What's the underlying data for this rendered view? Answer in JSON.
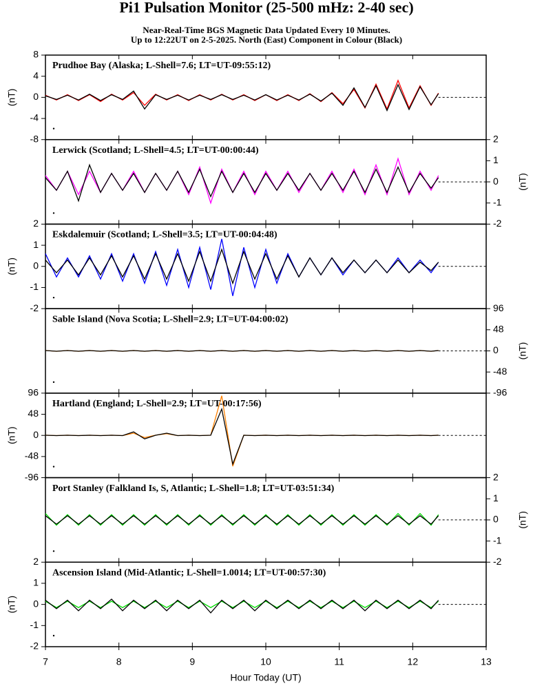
{
  "header": {
    "title": "Pi1 Pulsation Monitor (25-500 mHz: 2-40 sec)",
    "subtitle": [
      "Near-Real-Time BGS Magnetic Data Updated Every 10 Minutes.",
      "Up to 12:22UT on 2-5-2025. North (East) Component in Colour (Black)"
    ]
  },
  "chart_data": [
    {
      "type": "line",
      "title": "Prudhoe Bay (Alaska; L-Shell=7.6; LT=UT-09:55:12)",
      "ylabel": "(nT)",
      "y_axis_side": "left",
      "xlim": [
        7,
        13
      ],
      "xticks": [
        7,
        8,
        9,
        10,
        11,
        12,
        13
      ],
      "ylim": [
        -8,
        8
      ],
      "yticks": [
        -8,
        -4,
        0,
        4,
        8
      ],
      "x": [
        7,
        7.15,
        7.3,
        7.45,
        7.6,
        7.75,
        7.9,
        8.05,
        8.2,
        8.35,
        8.5,
        8.65,
        8.8,
        8.95,
        9.1,
        9.25,
        9.4,
        9.55,
        9.7,
        9.85,
        10,
        10.15,
        10.3,
        10.45,
        10.6,
        10.75,
        10.9,
        11.05,
        11.2,
        11.35,
        11.5,
        11.65,
        11.8,
        11.95,
        12.1,
        12.25,
        12.35
      ],
      "series": [
        {
          "color": "#ff0000",
          "values": [
            0.4,
            -0.5,
            0.5,
            -0.6,
            0.5,
            -0.8,
            0.6,
            -0.5,
            0.9,
            -1.5,
            0.6,
            -0.5,
            0.5,
            -0.6,
            0.5,
            -0.5,
            0.6,
            -0.5,
            0.5,
            -0.6,
            0.5,
            -0.6,
            0.5,
            -0.6,
            0.7,
            -0.8,
            0.9,
            -1.2,
            1.5,
            -2,
            2.5,
            -2.2,
            3.2,
            -2,
            2.2,
            -1.5,
            0.8
          ]
        },
        {
          "color": "#000000",
          "values": [
            0.3,
            -0.4,
            0.4,
            -0.5,
            0.6,
            -0.6,
            0.5,
            -0.4,
            1.2,
            -2.2,
            0.5,
            -0.4,
            0.4,
            -0.5,
            0.4,
            -0.4,
            0.5,
            -0.4,
            0.4,
            -0.5,
            0.5,
            -0.5,
            0.4,
            -0.5,
            0.6,
            -0.7,
            0.8,
            -1.5,
            1.8,
            -1.9,
            2.2,
            -2.5,
            2.4,
            -2.3,
            2,
            -1.4,
            0.7
          ]
        }
      ]
    },
    {
      "type": "line",
      "title": "Lerwick (Scotland; L-Shell=4.5; LT=UT-00:00:44)",
      "ylabel": "(nT)",
      "y_axis_side": "right",
      "xlim": [
        7,
        13
      ],
      "xticks": [
        7,
        8,
        9,
        10,
        11,
        12,
        13
      ],
      "ylim": [
        -2,
        2
      ],
      "yticks": [
        -2,
        -1,
        0,
        1,
        2
      ],
      "x": [
        7,
        7.15,
        7.3,
        7.45,
        7.6,
        7.75,
        7.9,
        8.05,
        8.2,
        8.35,
        8.5,
        8.65,
        8.8,
        8.95,
        9.1,
        9.25,
        9.4,
        9.55,
        9.7,
        9.85,
        10,
        10.15,
        10.3,
        10.45,
        10.6,
        10.75,
        10.9,
        11.05,
        11.2,
        11.35,
        11.5,
        11.65,
        11.8,
        11.95,
        12.1,
        12.25,
        12.35
      ],
      "series": [
        {
          "color": "#ff00ff",
          "values": [
            0.3,
            -0.4,
            0.5,
            -0.6,
            0.5,
            -0.5,
            0.4,
            -0.4,
            0.5,
            -0.5,
            0.4,
            -0.4,
            0.5,
            -0.6,
            0.7,
            -1,
            0.6,
            -0.5,
            0.5,
            -0.6,
            0.5,
            -0.4,
            0.5,
            -0.5,
            0.4,
            -0.4,
            0.5,
            -0.5,
            0.6,
            -0.6,
            0.8,
            -0.6,
            1.1,
            -0.6,
            0.5,
            -0.4,
            0.3
          ]
        },
        {
          "color": "#000000",
          "values": [
            0.2,
            -0.4,
            0.5,
            -0.9,
            0.8,
            -0.5,
            0.4,
            -0.4,
            0.4,
            -0.5,
            0.4,
            -0.4,
            0.5,
            -0.5,
            0.6,
            -0.7,
            0.5,
            -0.5,
            0.4,
            -0.5,
            0.4,
            -0.4,
            0.4,
            -0.4,
            0.4,
            -0.4,
            0.4,
            -0.4,
            0.5,
            -0.5,
            0.6,
            -0.5,
            0.7,
            -0.5,
            0.4,
            -0.3,
            0.2
          ]
        }
      ]
    },
    {
      "type": "line",
      "title": "Eskdalemuir (Scotland; L-Shell=3.5; LT=UT-00:04:48)",
      "ylabel": "(nT)",
      "y_axis_side": "left",
      "xlim": [
        7,
        13
      ],
      "xticks": [
        7,
        8,
        9,
        10,
        11,
        12,
        13
      ],
      "ylim": [
        -2,
        2
      ],
      "yticks": [
        -2,
        -1,
        0,
        1,
        2
      ],
      "x": [
        7,
        7.15,
        7.3,
        7.45,
        7.6,
        7.75,
        7.9,
        8.05,
        8.2,
        8.35,
        8.5,
        8.65,
        8.8,
        8.95,
        9.1,
        9.25,
        9.4,
        9.55,
        9.7,
        9.85,
        10,
        10.15,
        10.3,
        10.45,
        10.6,
        10.75,
        10.9,
        11.05,
        11.2,
        11.35,
        11.5,
        11.65,
        11.8,
        11.95,
        12.1,
        12.25,
        12.35
      ],
      "series": [
        {
          "color": "#0000ff",
          "values": [
            0.6,
            -0.5,
            0.4,
            -0.5,
            0.5,
            -0.6,
            0.6,
            -0.7,
            0.6,
            -0.8,
            0.7,
            -0.9,
            0.8,
            -1,
            0.9,
            -1.1,
            1.3,
            -1.4,
            0.9,
            -1,
            0.8,
            -0.8,
            0.6,
            -0.5,
            0.4,
            -0.4,
            0.4,
            -0.4,
            0.3,
            -0.3,
            0.3,
            -0.3,
            0.4,
            -0.3,
            0.3,
            -0.3,
            0.2
          ]
        },
        {
          "color": "#000000",
          "values": [
            0.3,
            -0.3,
            0.3,
            -0.4,
            0.4,
            -0.4,
            0.5,
            -0.5,
            0.5,
            -0.6,
            0.6,
            -0.6,
            0.6,
            -0.7,
            0.7,
            -0.7,
            0.8,
            -0.8,
            0.7,
            -0.6,
            0.6,
            -0.6,
            0.5,
            -0.5,
            0.4,
            -0.4,
            0.4,
            -0.3,
            0.3,
            -0.3,
            0.3,
            -0.3,
            0.3,
            -0.3,
            0.2,
            -0.2,
            0.2
          ]
        }
      ]
    },
    {
      "type": "line",
      "title": "Sable Island (Nova Scotia; L-Shell=2.9; LT=UT-04:00:02)",
      "ylabel": "(nT)",
      "y_axis_side": "right",
      "xlim": [
        7,
        13
      ],
      "xticks": [
        7,
        8,
        9,
        10,
        11,
        12,
        13
      ],
      "ylim": [
        -96,
        96
      ],
      "yticks": [
        -96,
        -48,
        0,
        48,
        96
      ],
      "x": [
        7,
        7.15,
        7.3,
        7.45,
        7.6,
        7.75,
        7.9,
        8.05,
        8.2,
        8.35,
        8.5,
        8.65,
        8.8,
        8.95,
        9.1,
        9.25,
        9.4,
        9.55,
        9.7,
        9.85,
        10,
        10.15,
        10.3,
        10.45,
        10.6,
        10.75,
        10.9,
        11.05,
        11.2,
        11.35,
        11.5,
        11.65,
        11.8,
        11.95,
        12.1,
        12.25,
        12.35
      ],
      "series": [
        {
          "color": "#ff8000",
          "values": [
            1,
            -1,
            1,
            -1,
            1,
            -1,
            1,
            -1,
            1,
            -1,
            1,
            -1,
            1,
            -1,
            1,
            -1,
            1,
            -1,
            1,
            -1,
            1,
            -1,
            1,
            -1,
            1,
            -1,
            1,
            -1,
            1,
            -1,
            1,
            -1,
            1,
            -1,
            1,
            -1,
            1
          ]
        },
        {
          "color": "#000000",
          "values": [
            0.8,
            -0.8,
            0.8,
            -0.8,
            0.8,
            -0.8,
            0.8,
            -0.8,
            0.8,
            -0.8,
            0.8,
            -0.8,
            0.8,
            -0.8,
            0.8,
            -0.8,
            0.8,
            -0.8,
            0.8,
            -0.8,
            0.8,
            -0.8,
            0.8,
            -0.8,
            0.8,
            -0.8,
            0.8,
            -0.8,
            0.8,
            -0.8,
            0.8,
            -0.8,
            0.8,
            -0.8,
            0.8,
            -0.8,
            0.8
          ]
        }
      ]
    },
    {
      "type": "line",
      "title": "Hartland (England; L-Shell=2.9; LT=UT-00:17:56)",
      "ylabel": "(nT)",
      "y_axis_side": "left",
      "xlim": [
        7,
        13
      ],
      "xticks": [
        7,
        8,
        9,
        10,
        11,
        12,
        13
      ],
      "ylim": [
        -96,
        96
      ],
      "yticks": [
        -96,
        -48,
        0,
        48,
        96
      ],
      "x": [
        7,
        7.15,
        7.3,
        7.45,
        7.6,
        7.75,
        7.9,
        8.05,
        8.2,
        8.35,
        8.5,
        8.65,
        8.8,
        8.95,
        9.1,
        9.25,
        9.4,
        9.55,
        9.7,
        9.85,
        10,
        10.15,
        10.3,
        10.45,
        10.6,
        10.75,
        10.9,
        11.05,
        11.2,
        11.35,
        11.5,
        11.65,
        11.8,
        11.95,
        12.1,
        12.25,
        12.35
      ],
      "series": [
        {
          "color": "#ff8000",
          "values": [
            0.5,
            -0.5,
            0.5,
            -0.5,
            0.5,
            -0.5,
            0.5,
            -0.5,
            5,
            -5,
            0.5,
            4,
            -0.5,
            0.5,
            -0.5,
            0.5,
            90,
            -70,
            0.5,
            -0.5,
            0.5,
            -0.5,
            0.5,
            -0.5,
            0.5,
            -0.5,
            0.5,
            -0.5,
            0.5,
            -0.5,
            0.5,
            -0.5,
            0.5,
            -0.5,
            0.5,
            -0.5,
            0.5
          ]
        },
        {
          "color": "#000000",
          "values": [
            0.4,
            -0.4,
            0.4,
            -0.4,
            0.4,
            -0.4,
            0.4,
            -0.4,
            8,
            -8,
            0.4,
            5,
            -0.4,
            0.4,
            -0.4,
            0.4,
            60,
            -65,
            0.4,
            -0.4,
            0.4,
            -0.4,
            0.4,
            -0.4,
            0.4,
            -0.4,
            0.4,
            -0.4,
            0.4,
            -0.4,
            0.4,
            -0.4,
            0.4,
            -0.4,
            0.4,
            -0.4,
            0.4
          ]
        }
      ]
    },
    {
      "type": "line",
      "title": "Port Stanley (Falkland Is, S, Atlantic; L-Shell=1.8; LT=UT-03:51:34)",
      "ylabel": "(nT)",
      "y_axis_side": "right",
      "xlim": [
        7,
        13
      ],
      "xticks": [
        7,
        8,
        9,
        10,
        11,
        12,
        13
      ],
      "ylim": [
        -2,
        2
      ],
      "yticks": [
        -2,
        -1,
        0,
        1,
        2
      ],
      "x": [
        7,
        7.15,
        7.3,
        7.45,
        7.6,
        7.75,
        7.9,
        8.05,
        8.2,
        8.35,
        8.5,
        8.65,
        8.8,
        8.95,
        9.1,
        9.25,
        9.4,
        9.55,
        9.7,
        9.85,
        10,
        10.15,
        10.3,
        10.45,
        10.6,
        10.75,
        10.9,
        11.05,
        11.2,
        11.35,
        11.5,
        11.65,
        11.8,
        11.95,
        12.1,
        12.25,
        12.35
      ],
      "series": [
        {
          "color": "#00dd00",
          "values": [
            0.3,
            -0.25,
            0.25,
            -0.25,
            0.25,
            -0.25,
            0.25,
            -0.25,
            0.25,
            -0.25,
            0.25,
            -0.25,
            0.25,
            -0.25,
            0.25,
            -0.25,
            0.25,
            -0.25,
            0.25,
            -0.25,
            0.25,
            -0.25,
            0.25,
            -0.25,
            0.25,
            -0.25,
            0.25,
            -0.25,
            0.25,
            -0.25,
            0.25,
            -0.25,
            0.3,
            -0.25,
            0.3,
            -0.25,
            0.25
          ]
        },
        {
          "color": "#000000",
          "values": [
            0.2,
            -0.2,
            0.2,
            -0.2,
            0.2,
            -0.2,
            0.2,
            -0.2,
            0.2,
            -0.2,
            0.2,
            -0.2,
            0.2,
            -0.2,
            0.2,
            -0.2,
            0.2,
            -0.2,
            0.2,
            -0.2,
            0.2,
            -0.2,
            0.2,
            -0.2,
            0.2,
            -0.2,
            0.2,
            -0.2,
            0.2,
            -0.2,
            0.2,
            -0.2,
            0.2,
            -0.2,
            0.2,
            -0.2,
            0.2
          ]
        }
      ]
    },
    {
      "type": "line",
      "title": "Ascension Island (Mid-Atlantic; L-Shell=1.0014; LT=UT-00:57:30)",
      "ylabel": "(nT)",
      "y_axis_side": "left",
      "xlim": [
        7,
        13
      ],
      "xticks": [
        7,
        8,
        9,
        10,
        11,
        12,
        13
      ],
      "ylim": [
        -2,
        2
      ],
      "yticks": [
        -2,
        -1,
        0,
        1,
        2
      ],
      "xlabel": "Hour Today (UT)",
      "x": [
        7,
        7.15,
        7.3,
        7.45,
        7.6,
        7.75,
        7.9,
        8.05,
        8.2,
        8.35,
        8.5,
        8.65,
        8.8,
        8.95,
        9.1,
        9.25,
        9.4,
        9.55,
        9.7,
        9.85,
        10,
        10.15,
        10.3,
        10.45,
        10.6,
        10.75,
        10.9,
        11.05,
        11.2,
        11.35,
        11.5,
        11.65,
        11.8,
        11.95,
        12.1,
        12.25,
        12.35
      ],
      "series": [
        {
          "color": "#00dd00",
          "values": [
            0.15,
            -0.15,
            0.15,
            -0.15,
            0.15,
            -0.15,
            0.15,
            -0.15,
            0.15,
            -0.15,
            0.15,
            -0.15,
            0.15,
            -0.15,
            0.15,
            -0.15,
            0.15,
            -0.15,
            0.15,
            -0.15,
            0.15,
            -0.15,
            0.15,
            -0.15,
            0.15,
            -0.15,
            0.15,
            -0.15,
            0.15,
            -0.15,
            0.15,
            -0.15,
            0.15,
            -0.15,
            0.15,
            -0.15,
            0.15
          ]
        },
        {
          "color": "#000000",
          "values": [
            0.2,
            -0.2,
            0.2,
            -0.3,
            0.2,
            -0.2,
            0.25,
            -0.3,
            0.2,
            -0.2,
            0.2,
            -0.3,
            0.2,
            -0.2,
            0.2,
            -0.4,
            0.2,
            -0.2,
            0.2,
            -0.3,
            0.2,
            -0.2,
            0.2,
            -0.2,
            0.2,
            -0.2,
            0.2,
            -0.2,
            0.2,
            -0.3,
            0.2,
            -0.2,
            0.2,
            -0.2,
            0.2,
            -0.2,
            0.2
          ]
        }
      ]
    }
  ]
}
